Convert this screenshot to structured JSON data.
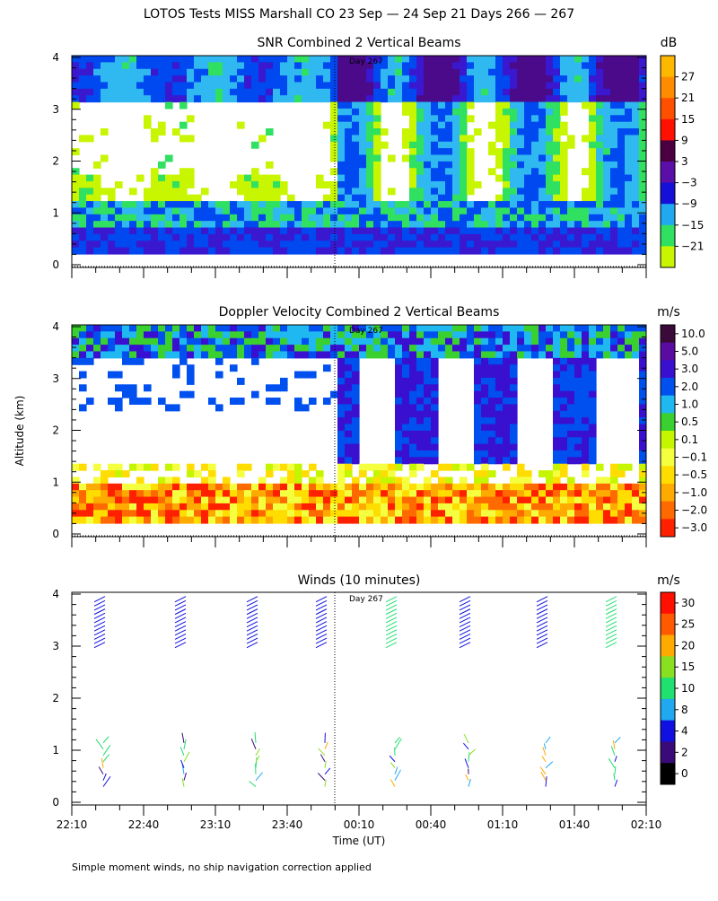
{
  "page": {
    "main_title": "LOTOS Tests MISS Marshall CO  23 Sep — 24 Sep 21 Days 266 — 267",
    "y_axis_label": "Altitude (km)",
    "x_axis_label": "Time (UT)",
    "footer_note": "Simple moment winds, no ship navigation correction applied",
    "day_marker": "Day 267"
  },
  "colors": {
    "ink": "#000000",
    "background": "#ffffff",
    "snr_scale": [
      "#c8f500",
      "#30e060",
      "#30b8f0",
      "#0048f0",
      "#3a18d0",
      "#4a0a8a"
    ],
    "doppler_scale": [
      "#ff2000",
      "#ff6a00",
      "#ffaa00",
      "#ffdd00",
      "#f4ff40",
      "#c6f500",
      "#3ad030",
      "#20b8f0",
      "#0050f0",
      "#3a10d0",
      "#5a0ca0",
      "#3a0a3a"
    ],
    "wind_scale": [
      "#000000",
      "#3a0a78",
      "#1010e0",
      "#20a8f0",
      "#20e070",
      "#88e020",
      "#ffaa00",
      "#ff5a00",
      "#ff1000"
    ]
  },
  "chart_data": [
    {
      "type": "heatmap",
      "title": "SNR Combined 2 Vertical Beams",
      "xlabel": "Time (UT)",
      "ylabel": "Altitude (km)",
      "x_ticks": [
        "22:10",
        "22:40",
        "23:10",
        "23:40",
        "00:10",
        "00:40",
        "01:10",
        "01:40",
        "02:10"
      ],
      "y_ticks": [
        "0",
        "1",
        "2",
        "3",
        "4"
      ],
      "ylim": [
        0,
        4
      ],
      "colorbar_unit": "dB",
      "colorbar_labels": [
        "27",
        "21",
        "15",
        "9",
        "3",
        "−3",
        "−9",
        "−15",
        "−21"
      ],
      "colorbar_colors": [
        "#ffb800",
        "#ff8c00",
        "#ff5000",
        "#ff1000",
        "#4a0040",
        "#5a10a8",
        "#1410d8",
        "#20a8f0",
        "#30e060",
        "#c8f500"
      ],
      "annotation": "Day 267",
      "grid": false
    },
    {
      "type": "heatmap",
      "title": "Doppler Velocity Combined 2 Vertical Beams",
      "xlabel": "Time (UT)",
      "ylabel": "Altitude (km)",
      "x_ticks": [
        "22:10",
        "22:40",
        "23:10",
        "23:40",
        "00:10",
        "00:40",
        "01:10",
        "01:40",
        "02:10"
      ],
      "y_ticks": [
        "0",
        "1",
        "2",
        "3",
        "4"
      ],
      "ylim": [
        0,
        4
      ],
      "colorbar_unit": "m/s",
      "colorbar_labels": [
        "10.0",
        "5.0",
        "3.0",
        "2.0",
        "1.0",
        "0.5",
        "0.1",
        "−0.1",
        "−0.5",
        "−1.0",
        "−2.0",
        "−3.0"
      ],
      "colorbar_colors": [
        "#3a0a3a",
        "#5a0ca0",
        "#3a10d0",
        "#0050f0",
        "#20b8f0",
        "#3ad030",
        "#c6f500",
        "#f4ff40",
        "#ffdd00",
        "#ffaa00",
        "#ff6a00",
        "#ff2000"
      ],
      "annotation": "Day 267",
      "grid": false
    },
    {
      "type": "scatter",
      "title": "Winds (10 minutes)",
      "xlabel": "Time (UT)",
      "ylabel": "Altitude (km)",
      "x_ticks": [
        "22:10",
        "22:40",
        "23:10",
        "23:40",
        "00:10",
        "00:40",
        "01:10",
        "01:40",
        "02:10"
      ],
      "y_ticks": [
        "0",
        "1",
        "2",
        "3",
        "4"
      ],
      "ylim": [
        0,
        4
      ],
      "colorbar_unit": "m/s",
      "colorbar_labels": [
        "30",
        "25",
        "20",
        "15",
        "10",
        "8",
        "4",
        "2",
        "0"
      ],
      "colorbar_colors": [
        "#ff1000",
        "#ff5a00",
        "#ffaa00",
        "#88e020",
        "#20e070",
        "#20a8f0",
        "#1010e0",
        "#3a0a78",
        "#000000"
      ],
      "annotation": "Day 267",
      "grid": false
    }
  ]
}
